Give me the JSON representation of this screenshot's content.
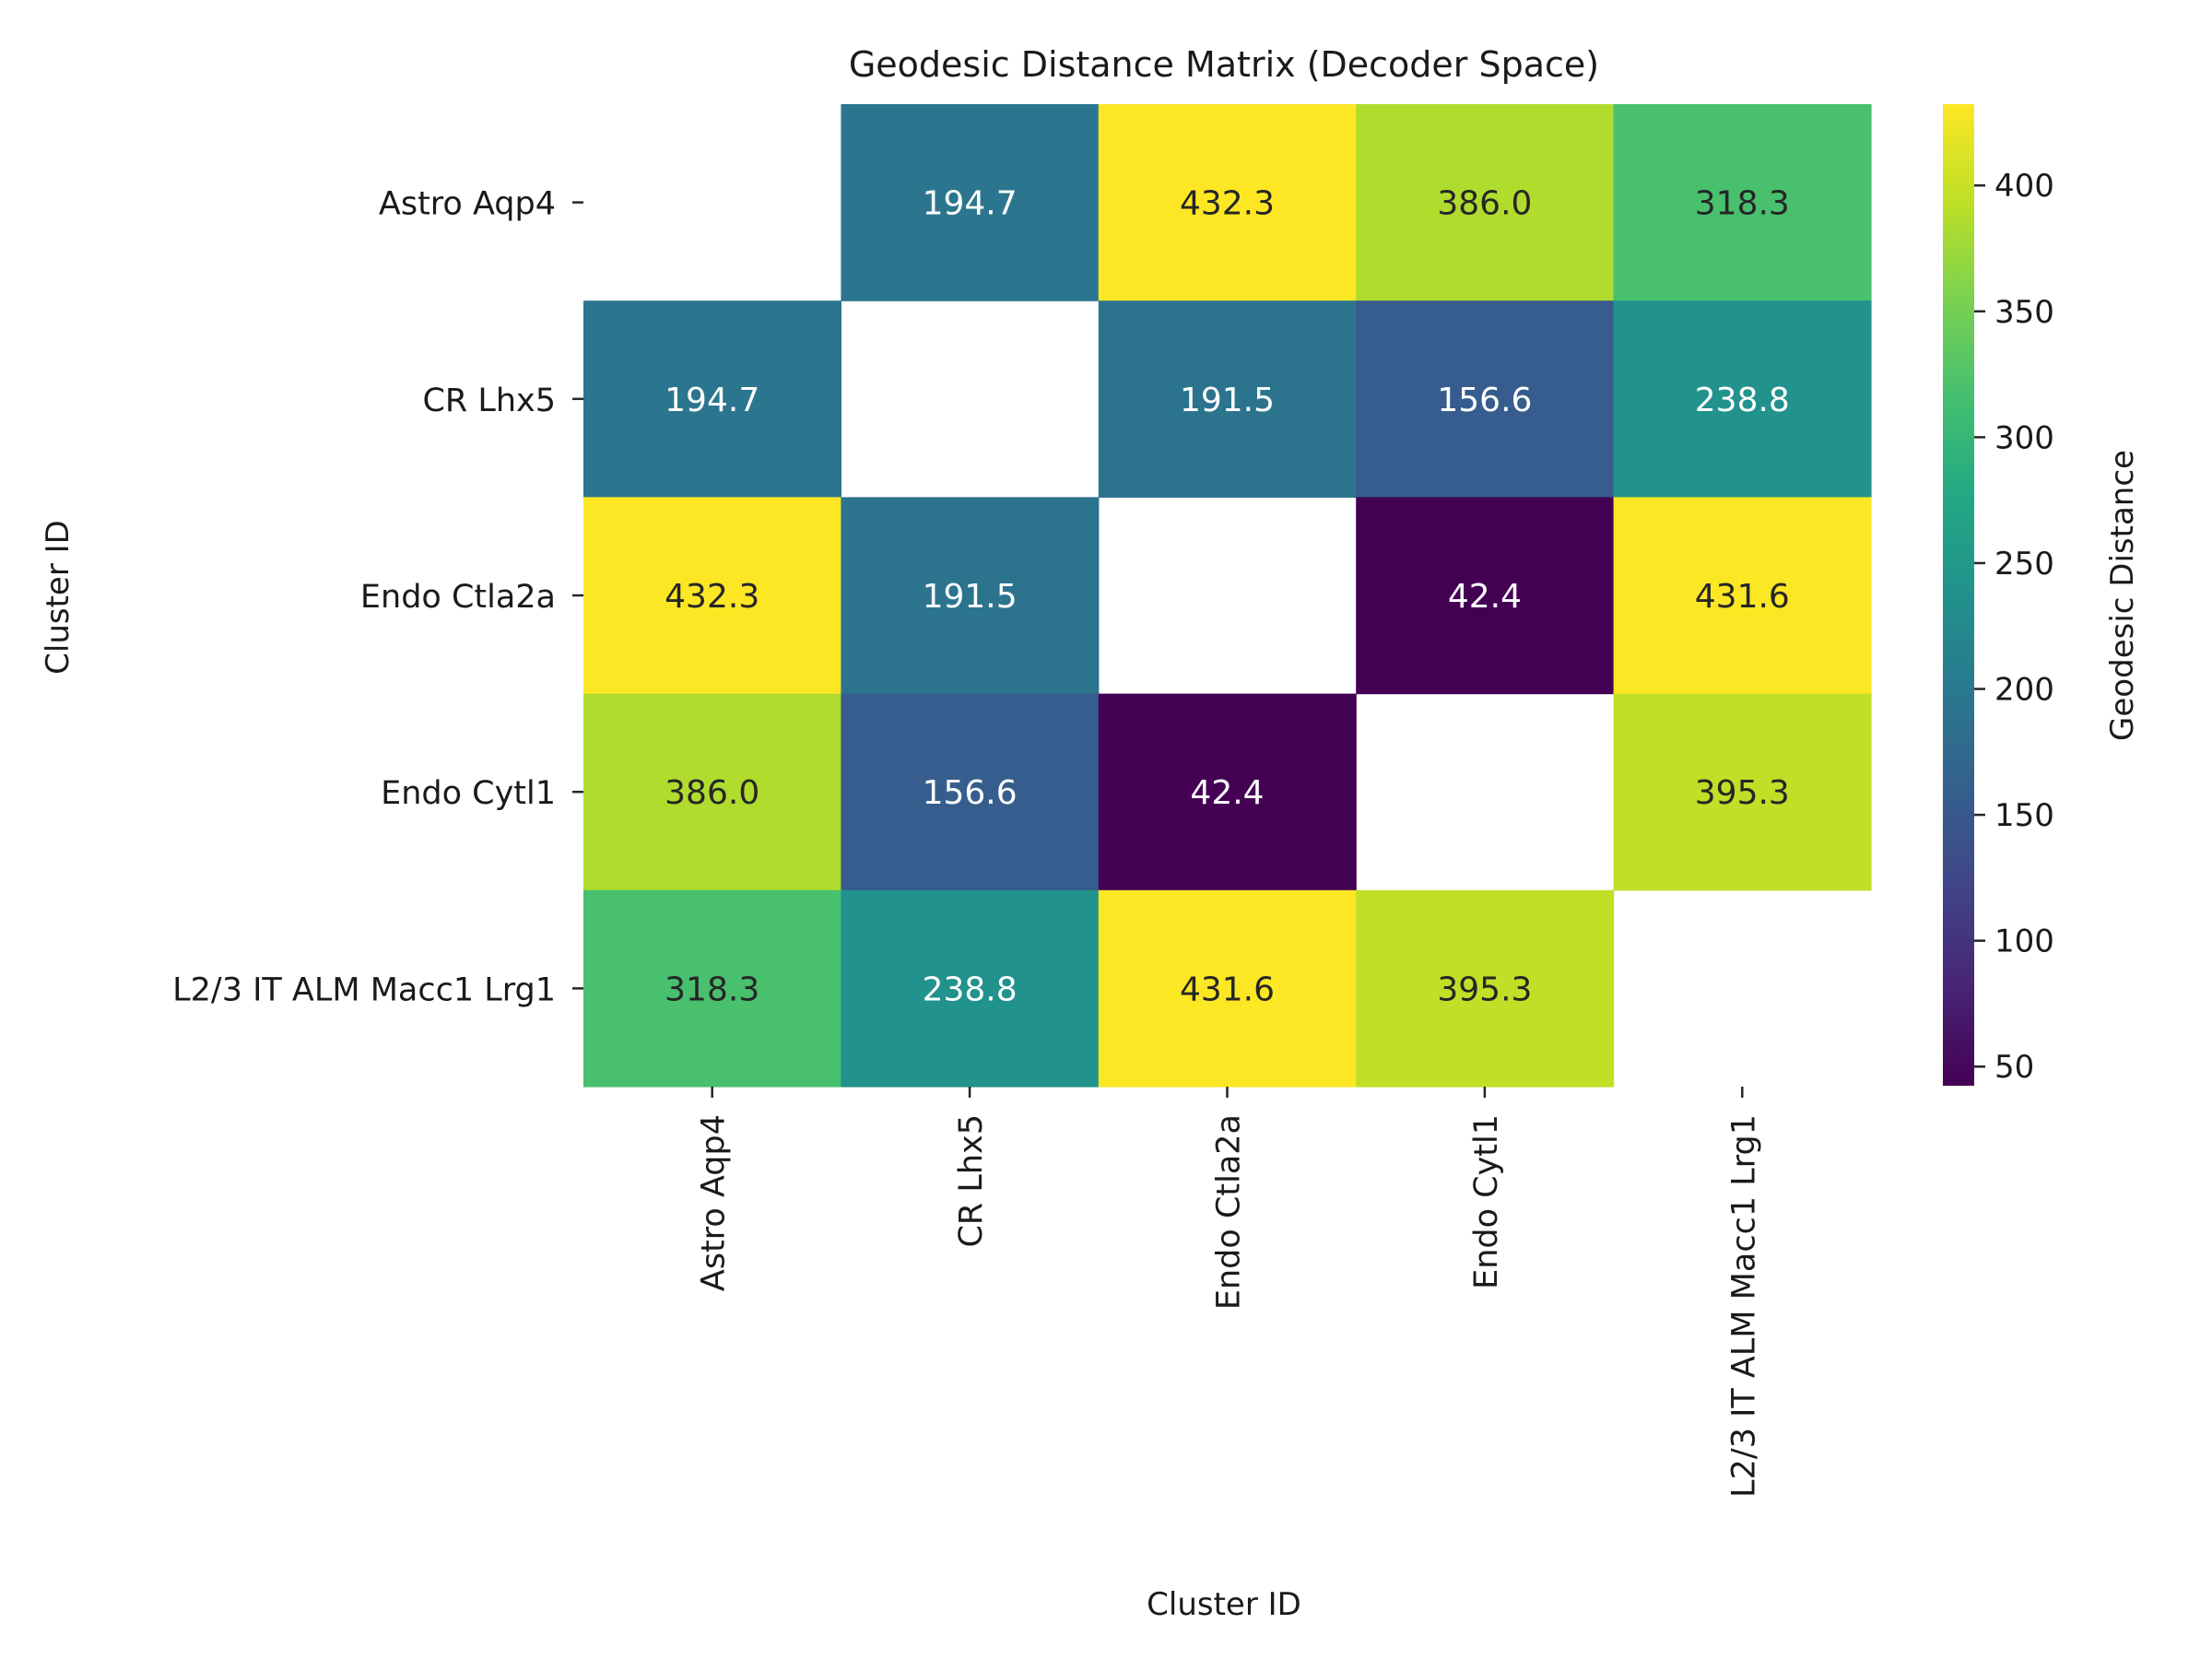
{
  "chart_data": {
    "type": "heatmap",
    "title": "Geodesic Distance Matrix (Decoder Space)",
    "xlabel": "Cluster ID",
    "ylabel": "Cluster ID",
    "categories": [
      "Astro Aqp4",
      "CR Lhx5",
      "Endo Ctla2a",
      "Endo Cytl1",
      "L2/3 IT ALM Macc1 Lrg1"
    ],
    "values": [
      [
        null,
        194.7,
        432.3,
        386.0,
        318.3
      ],
      [
        194.7,
        null,
        191.5,
        156.6,
        238.8
      ],
      [
        432.3,
        191.5,
        null,
        42.4,
        431.6
      ],
      [
        386.0,
        156.6,
        42.4,
        null,
        395.3
      ],
      [
        318.3,
        238.8,
        431.6,
        395.3,
        null
      ]
    ],
    "colormap": "viridis",
    "colorbar": {
      "label": "Geodesic Distance",
      "vmin": 42.4,
      "vmax": 432.3,
      "ticks": [
        50,
        100,
        150,
        200,
        250,
        300,
        350,
        400
      ]
    },
    "diagonal_masked": true,
    "value_format": "0.1f"
  }
}
